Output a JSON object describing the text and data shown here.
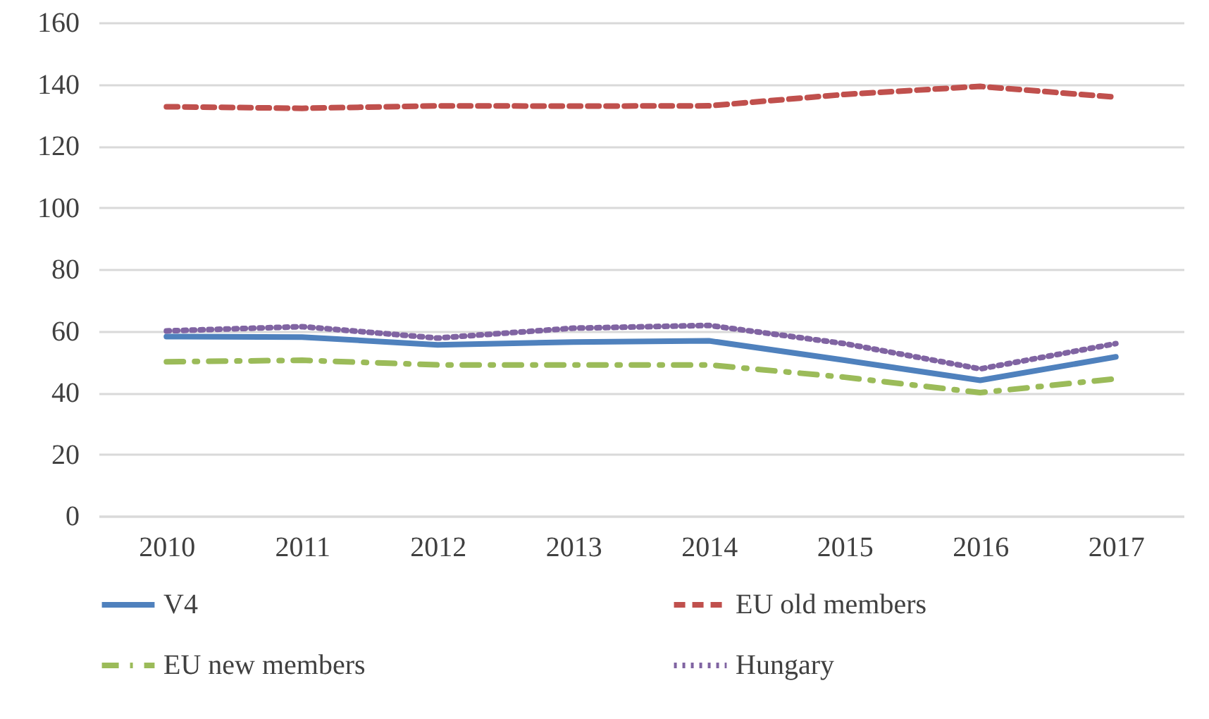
{
  "chart_data": {
    "type": "line",
    "categories": [
      "2010",
      "2011",
      "2012",
      "2013",
      "2014",
      "2015",
      "2016",
      "2017"
    ],
    "series": [
      {
        "name": "V4",
        "color": "#4f81bd",
        "line_style": "solid",
        "values": [
          58.2,
          58,
          55.5,
          56.4,
          56.8,
          50.5,
          44,
          51.6
        ]
      },
      {
        "name": "EU old members",
        "color": "#c0504d",
        "line_style": "dashed",
        "values": [
          132.7,
          132.2,
          133,
          132.9,
          133,
          136.7,
          139.3,
          135.8
        ]
      },
      {
        "name": "EU new members",
        "color": "#9bbb59",
        "line_style": "dashdot",
        "values": [
          50,
          50.5,
          49,
          49,
          49,
          45,
          40,
          44.5
        ]
      },
      {
        "name": "Hungary",
        "color": "#8064a2",
        "line_style": "dotted",
        "values": [
          60,
          61.4,
          57.7,
          60.9,
          61.8,
          55.9,
          47.7,
          55.9
        ]
      }
    ],
    "ylim": [
      0,
      160
    ],
    "yticks": [
      0,
      20,
      40,
      60,
      80,
      100,
      120,
      140,
      160
    ],
    "grid": "y",
    "legend": "bottom",
    "marker": "none"
  }
}
